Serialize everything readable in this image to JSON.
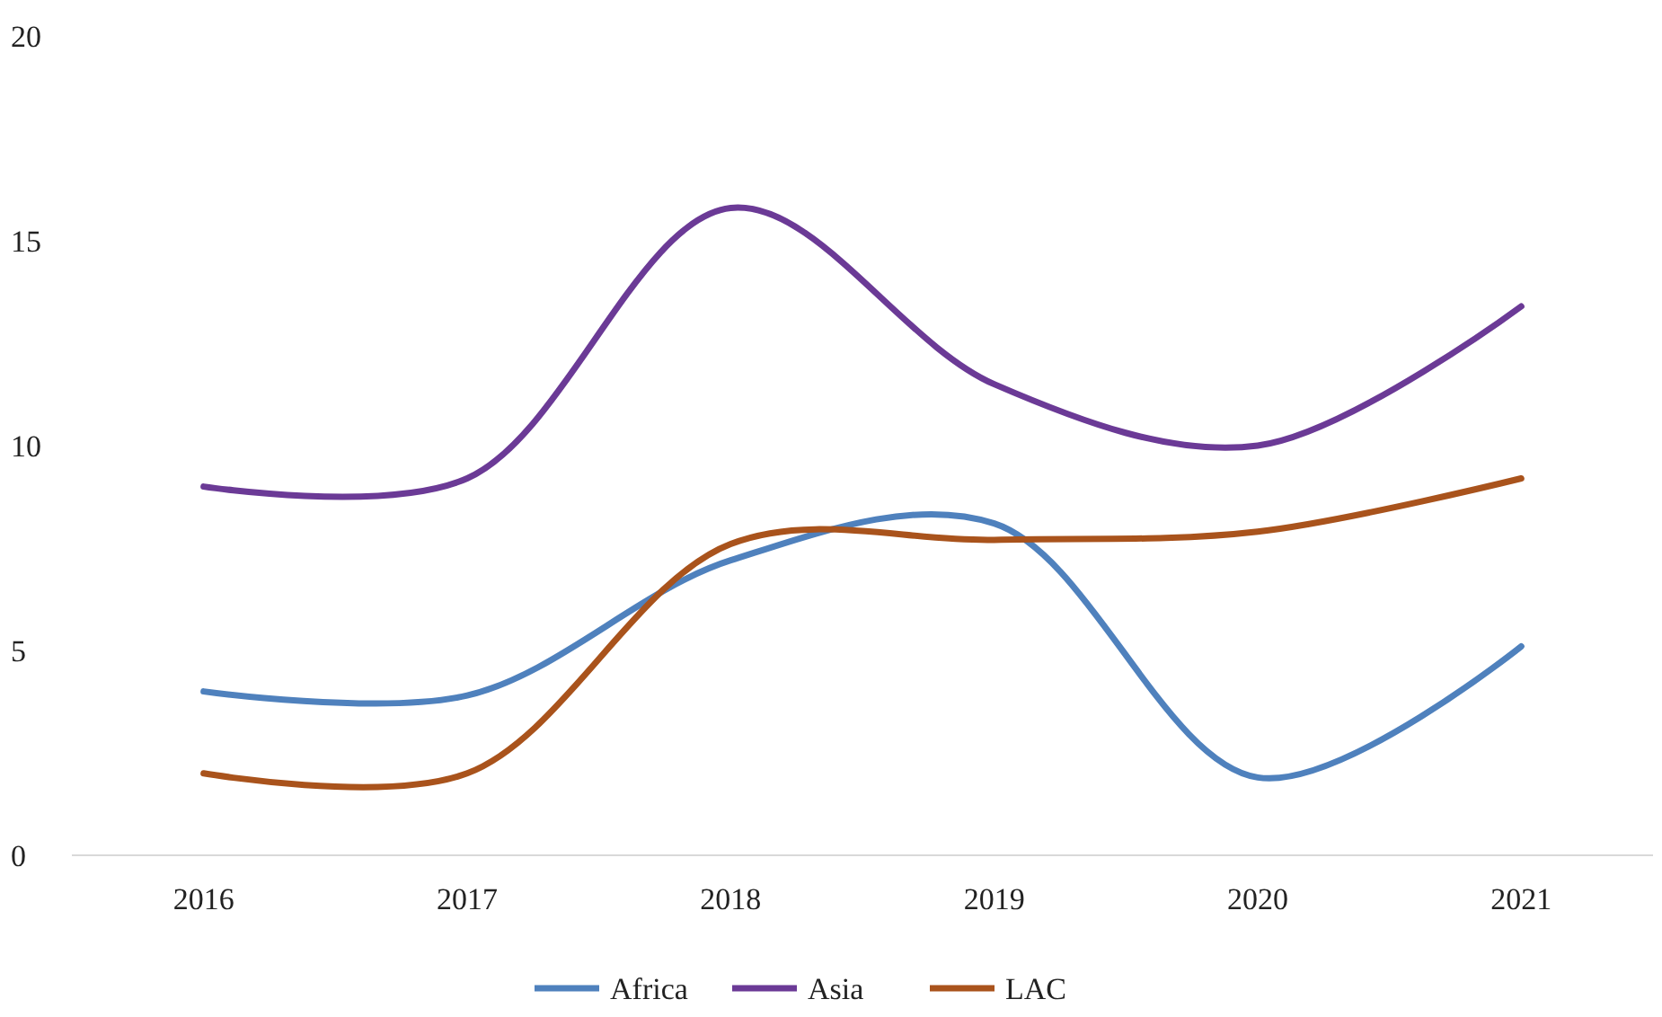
{
  "chart_data": {
    "type": "line",
    "categories": [
      "2016",
      "2017",
      "2018",
      "2019",
      "2020",
      "2021"
    ],
    "series": [
      {
        "name": "Africa",
        "color": "#4f81bd",
        "values": [
          4,
          3.9,
          7.2,
          8.1,
          1.9,
          5.1
        ]
      },
      {
        "name": "Asia",
        "color": "#6b3a96",
        "values": [
          9,
          9.2,
          15.8,
          11.5,
          10,
          13.4
        ]
      },
      {
        "name": "LAC",
        "color": "#a9531c",
        "values": [
          2,
          2,
          7.6,
          7.7,
          7.9,
          9.2
        ]
      }
    ],
    "ylim": [
      0,
      20
    ],
    "yticks": [
      0,
      5,
      10,
      15,
      20
    ],
    "grid": false,
    "legend": "bottom",
    "marker": "none",
    "line_style": "solid"
  }
}
